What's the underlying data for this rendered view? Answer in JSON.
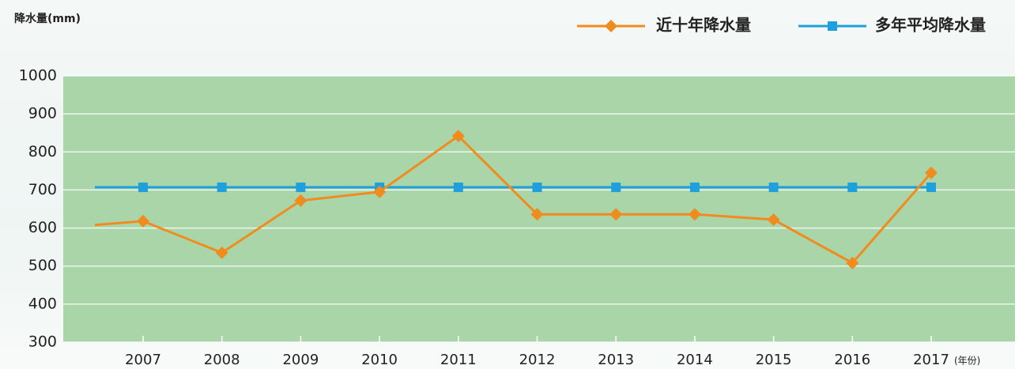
{
  "chart_data": {
    "type": "line",
    "y_label": "降水量(mm)",
    "x_label": "(年份)",
    "categories": [
      null,
      "2007",
      "2008",
      "2009",
      "2010",
      "2011",
      "2012",
      "2013",
      "2014",
      "2015",
      "2016",
      "2017"
    ],
    "series": [
      {
        "name": "近十年降水量",
        "color": "#f08c1e",
        "marker": "diamond",
        "values": [
          608,
          618,
          535,
          672,
          695,
          842,
          636,
          636,
          636,
          622,
          508,
          745
        ]
      },
      {
        "name": "多年平均降水量",
        "color": "#1fa0dc",
        "marker": "square",
        "values": [
          707,
          707,
          707,
          707,
          707,
          707,
          707,
          707,
          707,
          707,
          707,
          707
        ]
      }
    ],
    "ylim": [
      300,
      1000
    ],
    "yticks": [
      300,
      400,
      500,
      600,
      700,
      800,
      900,
      1000
    ],
    "grid": true,
    "plot_color": "#a9d5a8"
  }
}
